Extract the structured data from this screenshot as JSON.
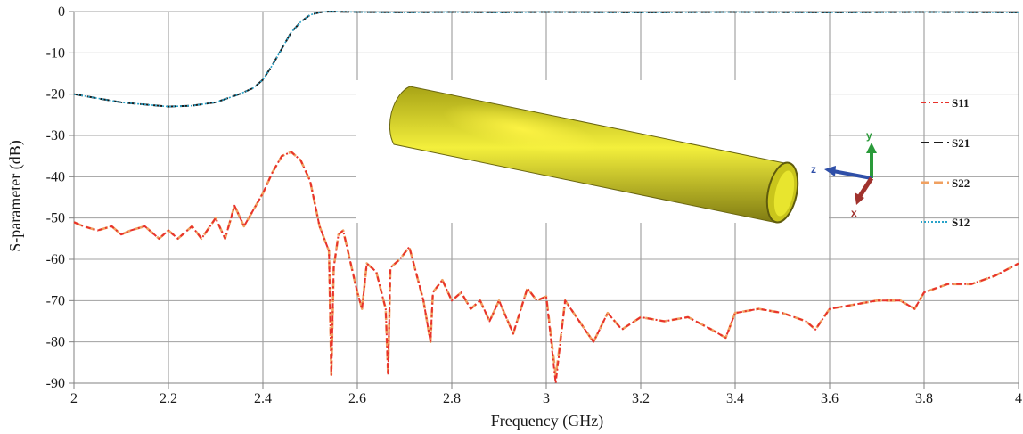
{
  "chart_data": {
    "type": "line",
    "xlabel": "Frequency (GHz)",
    "ylabel": "S-parameter (dB)",
    "xlim": [
      2,
      4
    ],
    "ylim": [
      -90,
      0
    ],
    "xticks": [
      2,
      2.2,
      2.4,
      2.6,
      2.8,
      3,
      3.2,
      3.4,
      3.6,
      3.8,
      4
    ],
    "xtick_labels": [
      "2",
      "2.2",
      "2.4",
      "2.6",
      "2.8",
      "3",
      "3.2",
      "3.4",
      "3.6",
      "3.8",
      "4"
    ],
    "yticks": [
      0,
      -10,
      -20,
      -30,
      -40,
      -50,
      -60,
      -70,
      -80,
      -90
    ],
    "ytick_labels": [
      "0",
      "-10",
      "-20",
      "-30",
      "-40",
      "-50",
      "-60",
      "-70",
      "-80",
      "-90"
    ],
    "grid": true,
    "legend_position": "right",
    "series": [
      {
        "name": "S11",
        "color": "#e8322b",
        "dash": "dash-dot",
        "x": [
          2.0,
          2.02,
          2.05,
          2.08,
          2.1,
          2.12,
          2.15,
          2.18,
          2.2,
          2.22,
          2.25,
          2.27,
          2.3,
          2.32,
          2.34,
          2.36,
          2.38,
          2.4,
          2.42,
          2.44,
          2.46,
          2.48,
          2.5,
          2.52,
          2.54,
          2.545,
          2.55,
          2.56,
          2.57,
          2.58,
          2.6,
          2.61,
          2.62,
          2.64,
          2.66,
          2.665,
          2.67,
          2.69,
          2.71,
          2.74,
          2.755,
          2.76,
          2.78,
          2.8,
          2.82,
          2.84,
          2.86,
          2.88,
          2.9,
          2.93,
          2.96,
          2.98,
          3.0,
          3.02,
          3.025,
          3.04,
          3.07,
          3.1,
          3.13,
          3.16,
          3.2,
          3.25,
          3.3,
          3.35,
          3.38,
          3.4,
          3.45,
          3.5,
          3.55,
          3.57,
          3.6,
          3.65,
          3.7,
          3.75,
          3.78,
          3.8,
          3.85,
          3.9,
          3.95,
          4.0
        ],
        "y": [
          -51,
          -52,
          -53,
          -52,
          -54,
          -53,
          -52,
          -55,
          -53,
          -55,
          -52,
          -55,
          -50,
          -55,
          -47,
          -52,
          -48,
          -44,
          -39,
          -35,
          -34,
          -36,
          -41,
          -52,
          -58,
          -88,
          -62,
          -54,
          -53,
          -58,
          -68,
          -72,
          -61,
          -63,
          -72,
          -88,
          -62,
          -60,
          -57,
          -70,
          -80,
          -68,
          -65,
          -70,
          -68,
          -72,
          -70,
          -75,
          -70,
          -78,
          -67,
          -70,
          -69,
          -90,
          -85,
          -70,
          -75,
          -80,
          -73,
          -77,
          -74,
          -75,
          -74,
          -77,
          -79,
          -73,
          -72,
          -73,
          -75,
          -77,
          -72,
          -71,
          -70,
          -70,
          -72,
          -68,
          -66,
          -66,
          -64,
          -61
        ]
      },
      {
        "name": "S21",
        "color": "#1a1a1a",
        "dash": "long-dash",
        "x": [
          2.0,
          2.05,
          2.1,
          2.15,
          2.2,
          2.25,
          2.3,
          2.35,
          2.38,
          2.4,
          2.42,
          2.44,
          2.46,
          2.48,
          2.5,
          2.52,
          2.54,
          2.6,
          2.7,
          2.8,
          2.9,
          3.0,
          3.2,
          3.4,
          3.6,
          3.8,
          4.0
        ],
        "y": [
          -20,
          -21,
          -22,
          -22.5,
          -23,
          -22.8,
          -22,
          -20,
          -18.5,
          -16.5,
          -13,
          -9,
          -5,
          -2.5,
          -0.8,
          -0.2,
          0,
          -0.1,
          -0.2,
          -0.1,
          -0.2,
          -0.1,
          -0.2,
          -0.1,
          -0.2,
          -0.1,
          -0.2
        ]
      },
      {
        "name": "S22",
        "color": "#f0a060",
        "dash": "long-dash",
        "x": [
          2.0,
          2.02,
          2.05,
          2.08,
          2.1,
          2.12,
          2.15,
          2.18,
          2.2,
          2.22,
          2.25,
          2.27,
          2.3,
          2.32,
          2.34,
          2.36,
          2.38,
          2.4,
          2.42,
          2.44,
          2.46,
          2.48,
          2.5,
          2.52,
          2.54,
          2.545,
          2.55,
          2.56,
          2.57,
          2.58,
          2.6,
          2.61,
          2.62,
          2.64,
          2.66,
          2.665,
          2.67,
          2.69,
          2.71,
          2.74,
          2.755,
          2.76,
          2.78,
          2.8,
          2.82,
          2.84,
          2.86,
          2.88,
          2.9,
          2.93,
          2.96,
          2.98,
          3.0,
          3.02,
          3.025,
          3.04,
          3.07,
          3.1,
          3.13,
          3.16,
          3.2,
          3.25,
          3.3,
          3.35,
          3.38,
          3.4,
          3.45,
          3.5,
          3.55,
          3.57,
          3.6,
          3.65,
          3.7,
          3.75,
          3.78,
          3.8,
          3.85,
          3.9,
          3.95,
          4.0
        ],
        "y": [
          -51,
          -52,
          -53,
          -52,
          -54,
          -53,
          -52,
          -55,
          -53,
          -55,
          -52,
          -55,
          -50,
          -55,
          -47,
          -52,
          -48,
          -44,
          -39,
          -35,
          -34,
          -36,
          -41,
          -52,
          -58,
          -88,
          -62,
          -54,
          -53,
          -58,
          -68,
          -72,
          -61,
          -63,
          -72,
          -88,
          -62,
          -60,
          -57,
          -70,
          -80,
          -68,
          -65,
          -70,
          -68,
          -72,
          -70,
          -75,
          -70,
          -78,
          -67,
          -70,
          -69,
          -88,
          -84,
          -70,
          -75,
          -80,
          -73,
          -77,
          -74,
          -75,
          -74,
          -77,
          -79,
          -73,
          -72,
          -73,
          -75,
          -77,
          -72,
          -71,
          -70,
          -70,
          -72,
          -68,
          -66,
          -66,
          -64,
          -61
        ]
      },
      {
        "name": "S12",
        "color": "#29a3c9",
        "dash": "dotted",
        "x": [
          2.0,
          2.05,
          2.1,
          2.15,
          2.2,
          2.25,
          2.3,
          2.35,
          2.38,
          2.4,
          2.42,
          2.44,
          2.46,
          2.48,
          2.5,
          2.52,
          2.54,
          2.6,
          2.7,
          2.8,
          2.9,
          3.0,
          3.2,
          3.4,
          3.6,
          3.8,
          4.0
        ],
        "y": [
          -20,
          -21,
          -22,
          -22.5,
          -23,
          -22.8,
          -22,
          -20,
          -18.5,
          -16.5,
          -13,
          -9,
          -5,
          -2.5,
          -0.8,
          -0.2,
          0,
          -0.1,
          -0.2,
          -0.1,
          -0.2,
          -0.1,
          -0.2,
          -0.1,
          -0.2,
          -0.1,
          -0.2
        ]
      }
    ],
    "inset": {
      "axis_labels": {
        "x": "x",
        "y": "y",
        "z": "z"
      },
      "tube_color": "#d4d21e",
      "axis_colors": {
        "x": "#a0322d",
        "y": "#2a9a3a",
        "z": "#2f4fa8"
      }
    }
  }
}
